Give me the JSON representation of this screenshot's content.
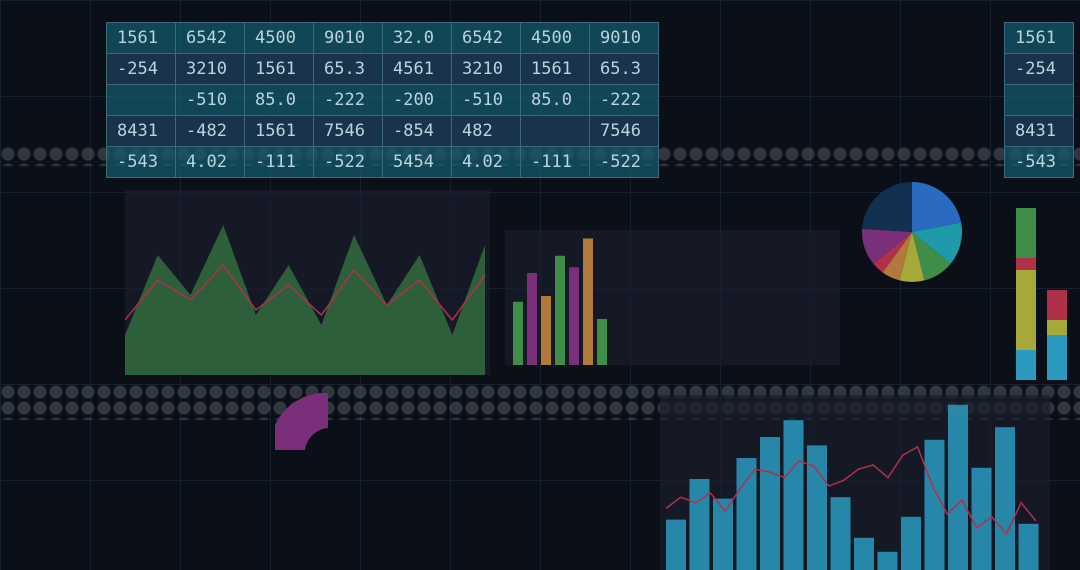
{
  "table": {
    "rows": [
      [
        "1561",
        "6542",
        "4500",
        "9010",
        "32.0",
        "6542",
        "4500",
        "9010"
      ],
      [
        "-254",
        "3210",
        "1561",
        "65.3",
        "4561",
        "3210",
        "1561",
        "65.3"
      ],
      [
        "",
        "-510",
        "85.0",
        "-222",
        "-200",
        "-510",
        "85.0",
        "-222"
      ],
      [
        "8431",
        "-482",
        "1561",
        "7546",
        "-854",
        "482",
        "",
        "7546"
      ],
      [
        "-543",
        "4.02",
        "-111",
        "-522",
        "5454",
        "4.02",
        "-111",
        "-522"
      ]
    ]
  },
  "side_table": {
    "rows": [
      "1561",
      "-254",
      "",
      "8431",
      "-543"
    ]
  },
  "colors": {
    "teal": "#2a9bbf",
    "red": "#b0304a",
    "green": "#3e8e4a",
    "purple": "#7a2f7a",
    "orange": "#b27a3a"
  },
  "chart_data": [
    {
      "type": "bar",
      "title": "",
      "series": [
        {
          "values": [
            36,
            65,
            51,
            80,
            95,
            107,
            89,
            52,
            23,
            13,
            38,
            93,
            118,
            73,
            102,
            33
          ]
        }
      ],
      "overlay_line": [
        44,
        52,
        48,
        55,
        42,
        58,
        72,
        70,
        66,
        78,
        74,
        60,
        64,
        72,
        75,
        66,
        82,
        88,
        60,
        40,
        50,
        30,
        38,
        26,
        48,
        35
      ]
    },
    {
      "type": "bar",
      "values": [
        55,
        80,
        60,
        95,
        85,
        110,
        40
      ],
      "colors": [
        "green",
        "purple",
        "orange",
        "green",
        "purple",
        "orange",
        "green"
      ]
    },
    {
      "type": "pie",
      "values": [
        22,
        14,
        10,
        8,
        6,
        4,
        12,
        24
      ]
    },
    {
      "type": "area",
      "values": [
        20,
        60,
        40,
        75,
        30,
        55,
        25,
        70,
        35,
        60,
        20,
        65
      ]
    }
  ]
}
